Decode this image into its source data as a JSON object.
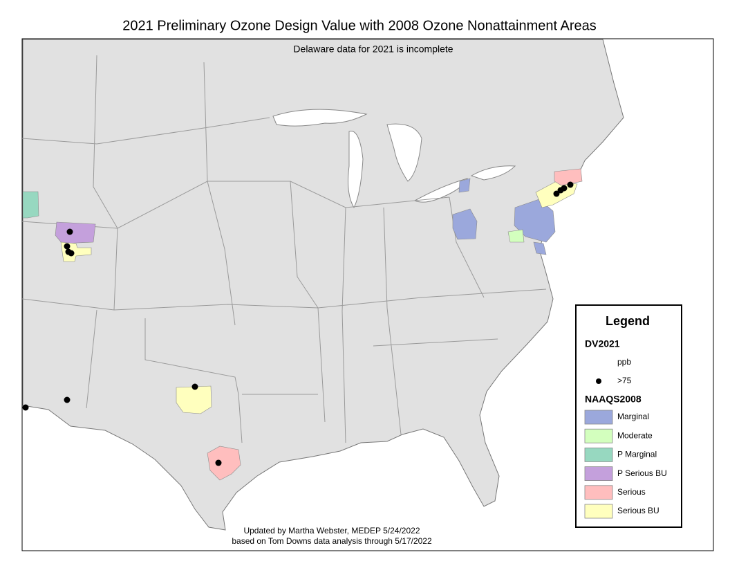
{
  "title": "2021 Preliminary Ozone Design Value with 2008 Ozone Nonattainment Areas",
  "subtitle": "Delaware data for 2021 is incomplete",
  "credits": [
    "Updated by Martha Webster, MEDEP 5/24/2022",
    "based on Tom Downs data analysis through 5/17/2022"
  ],
  "legend": {
    "title": "Legend",
    "dv_heading": "DV2021",
    "dv_unit": "ppb",
    "dv_symbol_label": ">75",
    "naaqs_heading": "NAAQS2008",
    "classes": [
      {
        "label": "Marginal",
        "color": "#9ba8dc"
      },
      {
        "label": "Moderate",
        "color": "#d3ffbe"
      },
      {
        "label": "P Marginal",
        "color": "#97d8c0"
      },
      {
        "label": "P Serious BU",
        "color": "#c4a0dc"
      },
      {
        "label": "Serious",
        "color": "#ffbebe"
      },
      {
        "label": "Serious BU",
        "color": "#ffffbe"
      }
    ]
  }
}
